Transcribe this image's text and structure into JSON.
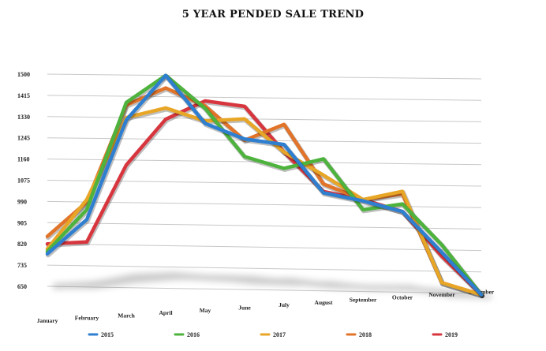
{
  "chart_data": {
    "type": "line",
    "title": "5 YEAR PENDED SALE TREND",
    "xlabel": "",
    "ylabel": "",
    "categories": [
      "January",
      "February",
      "March",
      "April",
      "May",
      "June",
      "July",
      "August",
      "September",
      "October",
      "November",
      "December"
    ],
    "yticks": [
      650,
      735,
      820,
      905,
      990,
      1075,
      1160,
      1245,
      1330,
      1415,
      1500
    ],
    "ylim": [
      650,
      1500
    ],
    "grid": true,
    "legend_position": "bottom",
    "series": [
      {
        "name": "2015",
        "color": "#2f7fd0",
        "values": [
          780,
          920,
          1320,
          1500,
          1310,
          1250,
          1230,
          1040,
          1010,
          970,
          810,
          645
        ]
      },
      {
        "name": "2016",
        "color": "#4db33d",
        "values": [
          790,
          960,
          1390,
          1500,
          1370,
          1180,
          1135,
          1175,
          975,
          1000,
          840,
          645
        ]
      },
      {
        "name": "2017",
        "color": "#e8a627",
        "values": [
          800,
          1000,
          1330,
          1370,
          1320,
          1330,
          1200,
          1110,
          1015,
          1050,
          690,
          645
        ]
      },
      {
        "name": "2018",
        "color": "#e2742a",
        "values": [
          850,
          990,
          1380,
          1450,
          1380,
          1245,
          1310,
          1075,
          1015,
          1040,
          690,
          645
        ]
      },
      {
        "name": "2019",
        "color": "#d8363e",
        "values": [
          820,
          830,
          1140,
          1325,
          1400,
          1380,
          1200,
          1045,
          1015,
          970,
          795,
          645
        ]
      }
    ]
  }
}
